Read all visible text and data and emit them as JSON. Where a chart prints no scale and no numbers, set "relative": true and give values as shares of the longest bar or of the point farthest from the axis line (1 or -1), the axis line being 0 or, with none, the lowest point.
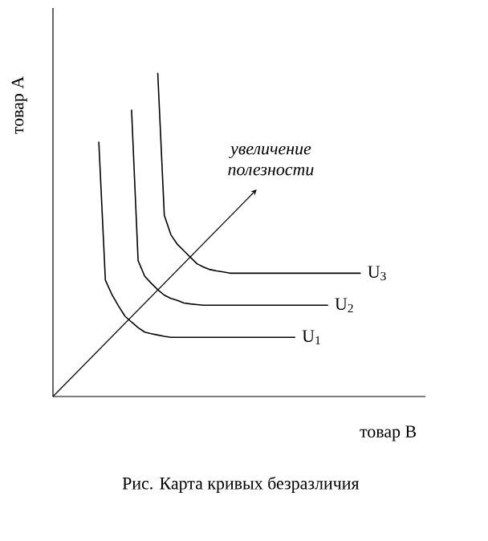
{
  "chart_data": {
    "type": "line",
    "relative": true,
    "xlabel": "товар В",
    "ylabel": "товар А",
    "annotations": [
      "увеличение полезности",
      "Рис. Карта кривых безразличия"
    ],
    "categories": [
      null,
      null,
      null,
      null,
      null,
      null,
      null,
      null,
      null,
      null,
      null,
      null,
      null,
      null,
      null,
      null,
      null,
      null,
      null,
      null,
      null,
      null,
      null,
      null,
      null,
      null,
      null,
      null,
      null,
      null,
      null,
      null,
      null,
      null,
      null,
      null,
      null,
      null,
      null,
      null,
      null,
      null,
      null,
      null,
      null,
      null,
      null,
      null
    ],
    "series": [
      {
        "name": "U$_{1}$",
        "color": "#000000",
        "values": [
          null,
          null,
          null,
          null,
          null,
          null,
          null,
          0.787,
          0.36,
          0.315,
          0.28,
          0.248,
          0.23,
          0.213,
          0.199,
          0.194,
          0.19,
          0.186,
          0.183,
          0.183,
          0.183,
          0.183,
          0.183,
          0.183,
          0.183,
          0.183,
          0.183,
          0.183,
          0.183,
          0.183,
          0.183,
          0.183,
          0.183,
          0.183,
          0.183,
          0.183,
          0.183,
          0.183,
          null,
          null,
          null,
          null,
          null,
          null,
          null,
          null,
          null,
          null
        ]
      },
      {
        "name": "U$_{2}$",
        "color": "#000000",
        "values": [
          null,
          null,
          null,
          null,
          null,
          null,
          null,
          null,
          null,
          null,
          null,
          null,
          0.886,
          0.42,
          0.372,
          0.35,
          0.33,
          0.313,
          0.303,
          0.297,
          0.289,
          0.286,
          0.284,
          0.282,
          0.282,
          0.282,
          0.282,
          0.282,
          0.282,
          0.282,
          0.282,
          0.282,
          0.282,
          0.282,
          0.282,
          0.282,
          0.282,
          0.282,
          0.282,
          0.282,
          0.282,
          0.282,
          0.282,
          null,
          null,
          null,
          null,
          null
        ]
      },
      {
        "name": "U$_{3}$",
        "color": "#000000",
        "values": [
          null,
          null,
          null,
          null,
          null,
          null,
          null,
          null,
          null,
          null,
          null,
          null,
          null,
          null,
          null,
          null,
          1.0,
          0.56,
          0.5,
          0.47,
          0.45,
          0.43,
          0.41,
          0.4,
          0.392,
          0.388,
          0.385,
          0.381,
          0.381,
          0.381,
          0.381,
          0.381,
          0.381,
          0.381,
          0.381,
          0.381,
          0.381,
          0.381,
          0.381,
          0.381,
          0.381,
          0.381,
          0.381,
          0.381,
          0.381,
          0.381,
          0.381,
          0.381
        ]
      }
    ]
  }
}
